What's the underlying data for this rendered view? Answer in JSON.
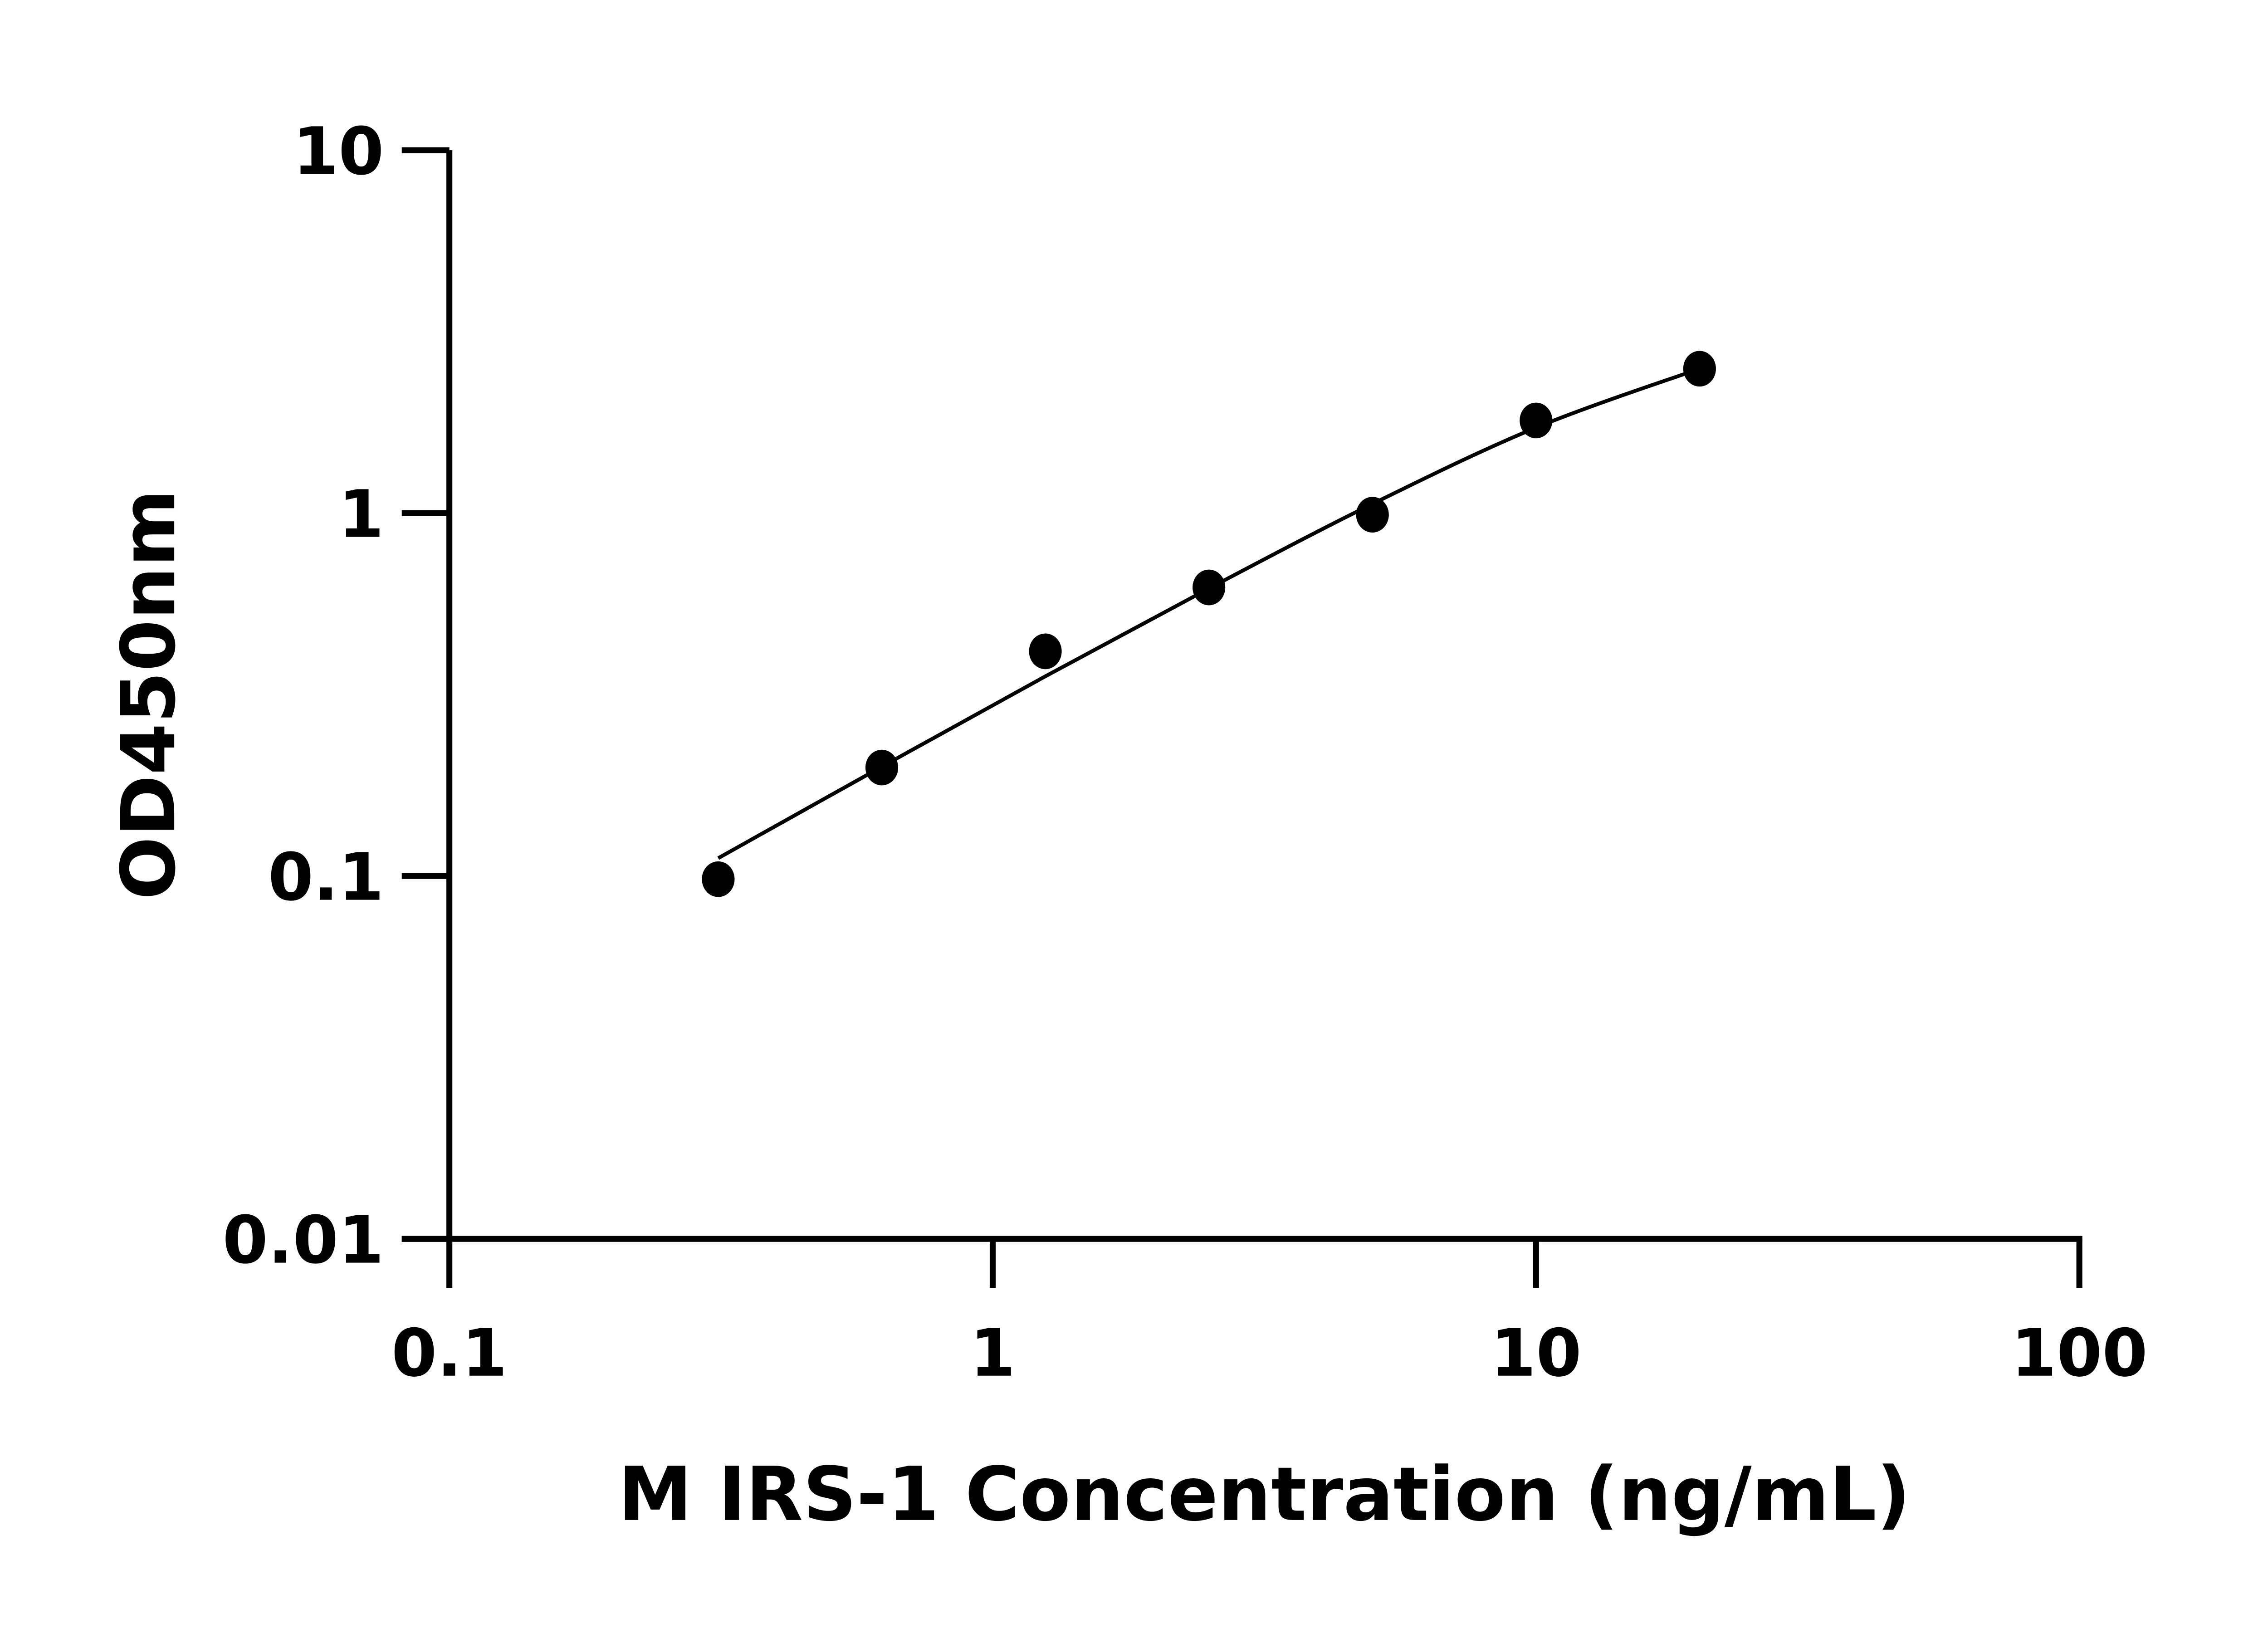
{
  "chart_data": {
    "type": "scatter",
    "title": "",
    "xlabel": "M IRS-1 Concentration (ng/mL)",
    "ylabel": "OD450nm",
    "x_scale": "log",
    "y_scale": "log",
    "xlim": [
      0.1,
      100
    ],
    "ylim": [
      0.01,
      10
    ],
    "x_ticks": [
      "0.1",
      "1",
      "10",
      "100"
    ],
    "y_ticks": [
      "0.01",
      "0.1",
      "1",
      "10"
    ],
    "x_tick_values": [
      0.1,
      1,
      10,
      100
    ],
    "y_tick_values": [
      0.01,
      0.1,
      1,
      10
    ],
    "grid": false,
    "marker_color": "#000000",
    "points": {
      "x": [
        0.3125,
        0.625,
        1.25,
        2.5,
        5,
        10,
        20
      ],
      "y": [
        0.098,
        0.199,
        0.416,
        0.624,
        0.99,
        1.8,
        2.5
      ]
    },
    "fit_curve": {
      "x": [
        0.3125,
        0.625,
        1.25,
        2.5,
        5,
        10,
        20
      ],
      "y": [
        0.112,
        0.2,
        0.355,
        0.62,
        1.06,
        1.72,
        2.5
      ]
    }
  }
}
